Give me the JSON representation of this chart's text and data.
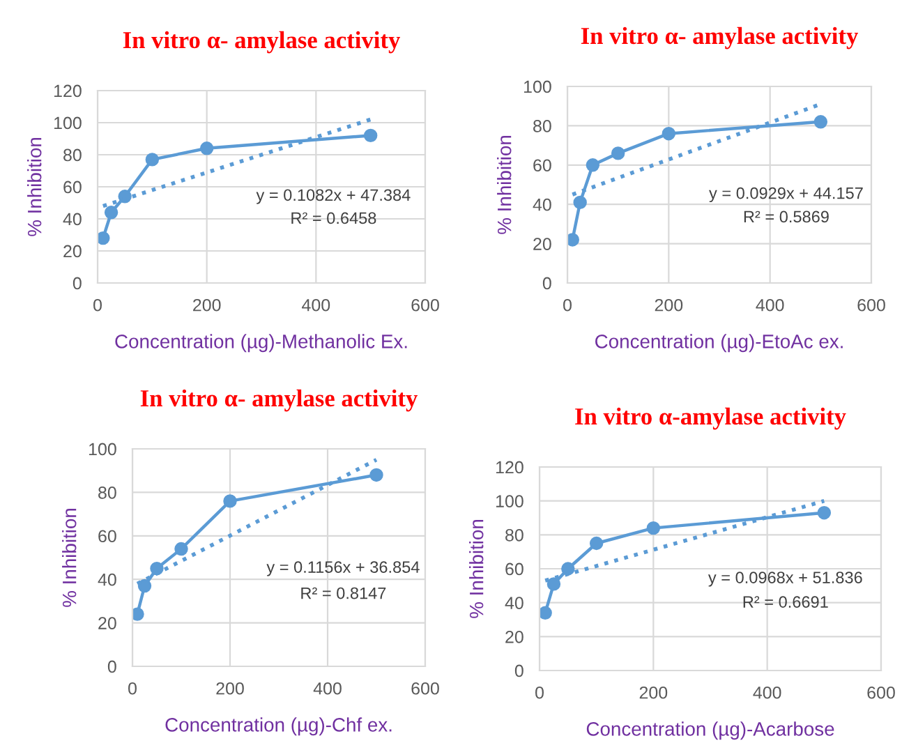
{
  "chart_data": [
    {
      "type": "line",
      "title": "In vitro α- amylase activity",
      "xlabel": "Concentration (µg)-Methanolic Ex.",
      "ylabel": "% Inhibition",
      "series": [
        {
          "color": "#5b9bd5",
          "x": [
            10,
            25,
            50,
            100,
            200,
            500
          ],
          "values": [
            28,
            44,
            54,
            77,
            84,
            92
          ],
          "marker": "circle",
          "line_style": "solid"
        },
        {
          "color": "#5b9bd5",
          "x": [
            10,
            500
          ],
          "values": [
            48,
            102
          ],
          "marker": "none",
          "line_style": "dotted"
        }
      ],
      "xlim": [
        0,
        600
      ],
      "xticks": [
        0,
        200,
        400,
        600
      ],
      "ylim": [
        0,
        120
      ],
      "yticks": [
        0,
        20,
        40,
        60,
        80,
        100,
        120
      ],
      "grid": true,
      "annotations": [
        "y = 0.1082x + 47.384",
        "R² = 0.6458"
      ]
    },
    {
      "type": "line",
      "title": "In vitro α- amylase activity",
      "xlabel": "Concentration (µg)-EtoAc ex.",
      "ylabel": "% Inhibition",
      "series": [
        {
          "color": "#5b9bd5",
          "x": [
            10,
            25,
            50,
            100,
            200,
            500
          ],
          "values": [
            22,
            41,
            60,
            66,
            76,
            82
          ],
          "marker": "circle",
          "line_style": "solid"
        },
        {
          "color": "#5b9bd5",
          "x": [
            10,
            500
          ],
          "values": [
            45,
            91
          ],
          "marker": "none",
          "line_style": "dotted"
        }
      ],
      "xlim": [
        0,
        600
      ],
      "xticks": [
        0,
        200,
        400,
        600
      ],
      "ylim": [
        0,
        100
      ],
      "yticks": [
        0,
        20,
        40,
        60,
        80,
        100
      ],
      "grid": true,
      "annotations": [
        "y = 0.0929x + 44.157",
        "R² = 0.5869"
      ]
    },
    {
      "type": "line",
      "title": "In vitro α- amylase activity",
      "xlabel": "Concentration (µg)-Chf ex.",
      "ylabel": "% Inhibition",
      "series": [
        {
          "color": "#5b9bd5",
          "x": [
            10,
            25,
            50,
            100,
            200,
            500
          ],
          "values": [
            24,
            37,
            45,
            54,
            76,
            88
          ],
          "marker": "circle",
          "line_style": "solid"
        },
        {
          "color": "#5b9bd5",
          "x": [
            10,
            500
          ],
          "values": [
            38,
            95
          ],
          "marker": "none",
          "line_style": "dotted"
        }
      ],
      "xlim": [
        0,
        600
      ],
      "xticks": [
        0,
        200,
        400,
        600
      ],
      "ylim": [
        0,
        100
      ],
      "yticks": [
        0,
        20,
        40,
        60,
        80,
        100
      ],
      "grid": true,
      "annotations": [
        "y = 0.1156x + 36.854",
        "R² = 0.8147"
      ]
    },
    {
      "type": "line",
      "title": "In vitro α-amylase activity",
      "xlabel": "Concentration (µg)-Acarbose",
      "ylabel": "% Inhibition",
      "series": [
        {
          "color": "#5b9bd5",
          "x": [
            10,
            25,
            50,
            100,
            200,
            500
          ],
          "values": [
            34,
            51,
            60,
            75,
            84,
            93
          ],
          "marker": "circle",
          "line_style": "solid"
        },
        {
          "color": "#5b9bd5",
          "x": [
            10,
            500
          ],
          "values": [
            53,
            100
          ],
          "marker": "none",
          "line_style": "dotted"
        }
      ],
      "xlim": [
        0,
        600
      ],
      "xticks": [
        0,
        200,
        400,
        600
      ],
      "ylim": [
        0,
        120
      ],
      "yticks": [
        0,
        20,
        40,
        60,
        80,
        100,
        120
      ],
      "grid": true,
      "annotations": [
        "y = 0.0968x + 51.836",
        "R² = 0.6691"
      ]
    }
  ]
}
